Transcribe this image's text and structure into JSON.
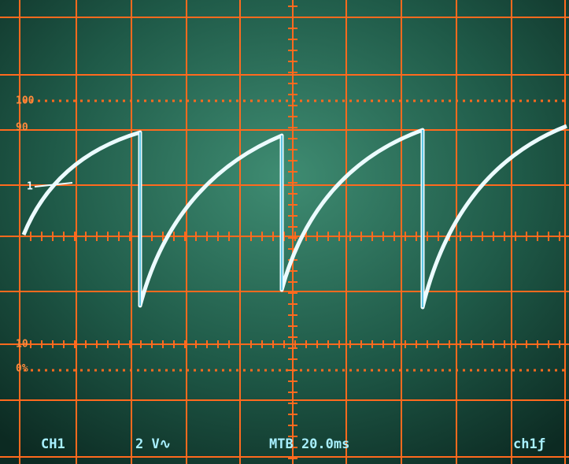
{
  "markers": [
    "100",
    "90",
    "1",
    "10",
    "0%"
  ],
  "status_bar": [
    "CH1",
    "2 V∿",
    "MTB 20.0ms",
    "ch1ƒ"
  ]
}
